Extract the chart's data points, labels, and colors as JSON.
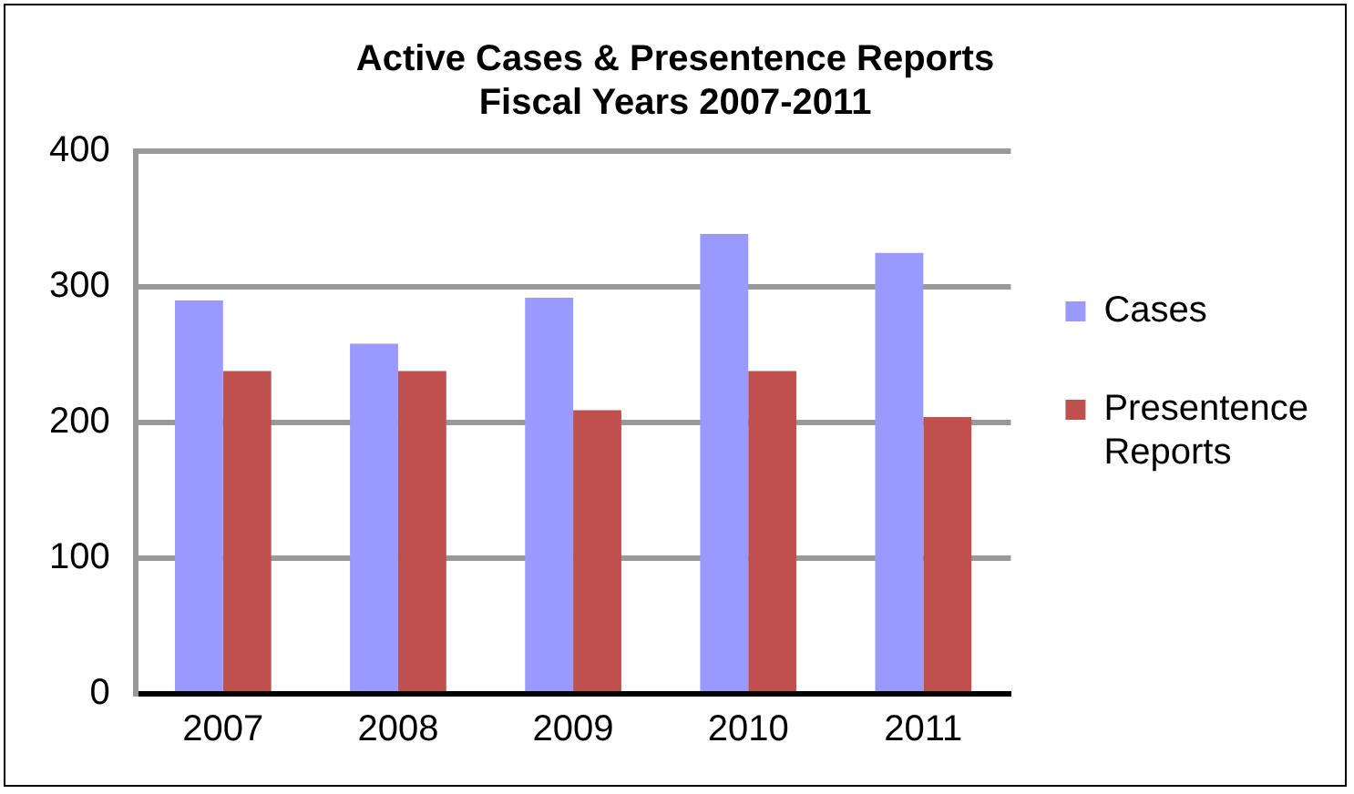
{
  "chart_data": {
    "type": "bar",
    "title": [
      "Active Cases & Presentence Reports",
      "Fiscal Years 2007-2011"
    ],
    "categories": [
      "2007",
      "2008",
      "2009",
      "2010",
      "2011"
    ],
    "series": [
      {
        "name": "Cases",
        "color": "#9999ff",
        "values": [
          290,
          258,
          292,
          339,
          325
        ]
      },
      {
        "name": "Presentence Reports",
        "color": "#c0504d",
        "values": [
          238,
          238,
          209,
          238,
          204
        ]
      }
    ],
    "ylim": [
      0,
      400
    ],
    "yticks": [
      0,
      100,
      200,
      300,
      400
    ],
    "grid": "y",
    "legend": "right"
  }
}
